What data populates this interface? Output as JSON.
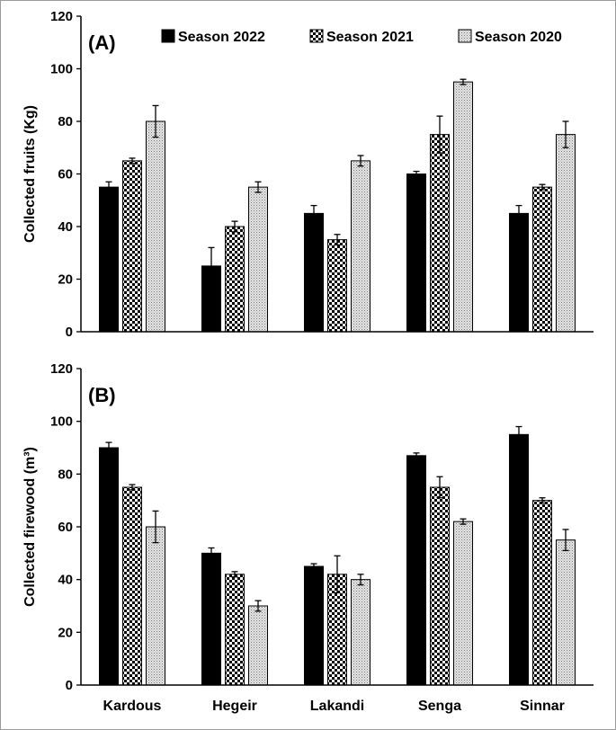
{
  "chart_data": [
    {
      "type": "bar",
      "panel_label": "(A)",
      "ylabel": "Collected fruits (Kg)",
      "ylim": [
        0,
        120
      ],
      "ytick_step": 20,
      "categories": [
        "Kardous",
        "Hegeir",
        "Lakandi",
        "Senga",
        "Sinnar"
      ],
      "legend": {
        "placement": "top"
      },
      "series": [
        {
          "name": "Season 2022",
          "values": [
            55,
            25,
            45,
            60,
            45
          ],
          "errors": [
            2,
            7,
            3,
            1,
            3
          ]
        },
        {
          "name": "Season 2021",
          "values": [
            65,
            40,
            35,
            75,
            55
          ],
          "errors": [
            1,
            2,
            2,
            7,
            1
          ]
        },
        {
          "name": "Season 2020",
          "values": [
            80,
            55,
            65,
            95,
            75
          ],
          "errors": [
            6,
            2,
            2,
            1,
            5
          ]
        }
      ]
    },
    {
      "type": "bar",
      "panel_label": "(B)",
      "ylabel": "Collected firewood (m³)",
      "ylim": [
        0,
        120
      ],
      "ytick_step": 20,
      "categories": [
        "Kardous",
        "Hegeir",
        "Lakandi",
        "Senga",
        "Sinnar"
      ],
      "series": [
        {
          "name": "Season 2022",
          "values": [
            90,
            50,
            45,
            87,
            95
          ],
          "errors": [
            2,
            2,
            1,
            1,
            3
          ]
        },
        {
          "name": "Season 2021",
          "values": [
            75,
            42,
            42,
            75,
            70
          ],
          "errors": [
            1,
            1,
            7,
            4,
            1
          ]
        },
        {
          "name": "Season 2020",
          "values": [
            60,
            30,
            40,
            62,
            55
          ],
          "errors": [
            6,
            2,
            2,
            1,
            4
          ]
        }
      ]
    }
  ]
}
